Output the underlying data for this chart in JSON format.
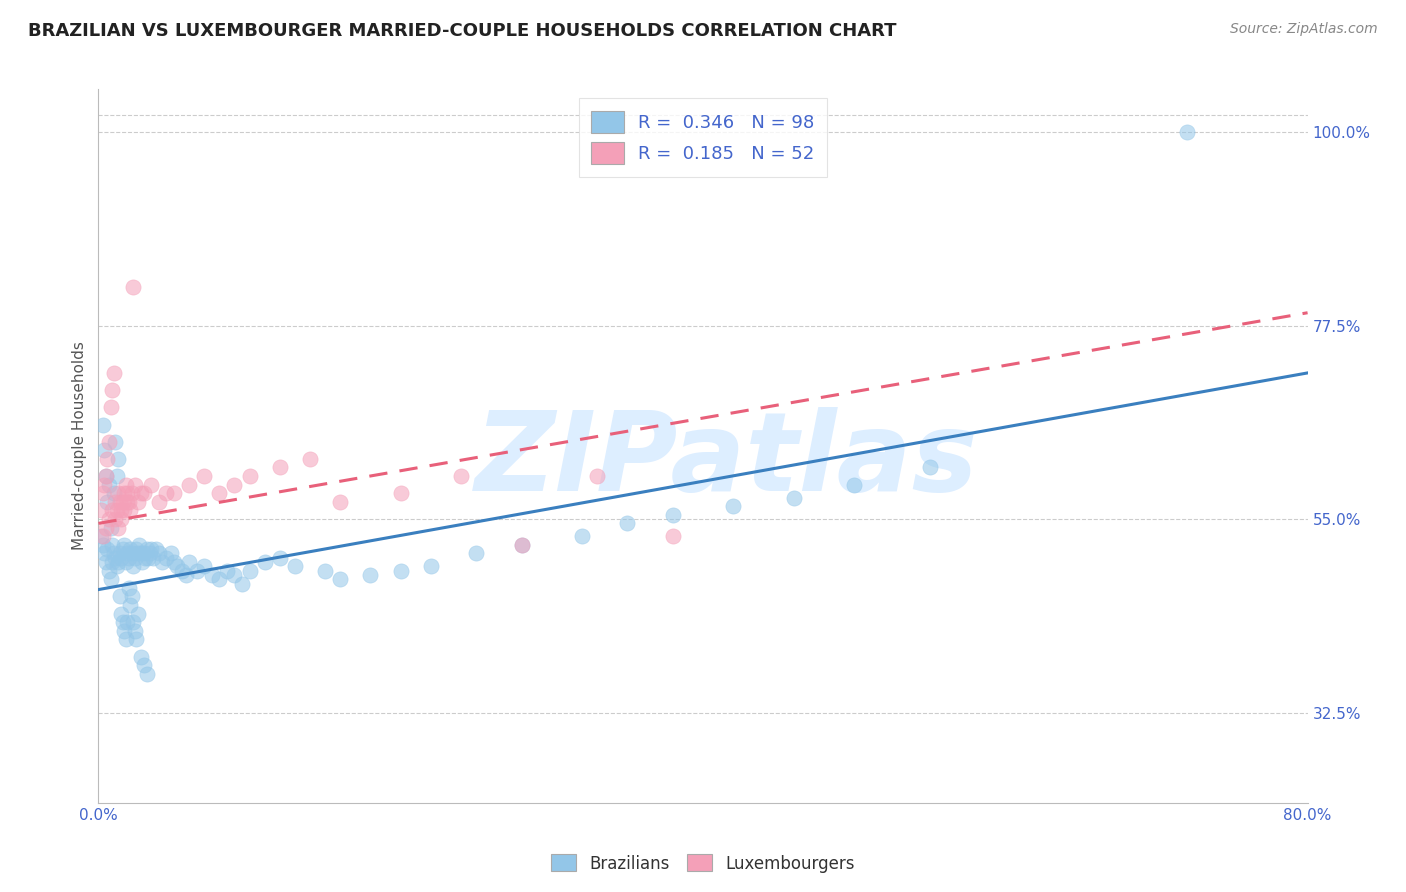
{
  "title": "BRAZILIAN VS LUXEMBOURGER MARRIED-COUPLE HOUSEHOLDS CORRELATION CHART",
  "source": "Source: ZipAtlas.com",
  "ylabel": "Married-couple Households",
  "ytick_labels": [
    "100.0%",
    "77.5%",
    "55.0%",
    "32.5%"
  ],
  "ytick_values": [
    1.0,
    0.775,
    0.55,
    0.325
  ],
  "watermark": "ZIPatlas",
  "blue_scatter_x": [
    0.002,
    0.003,
    0.004,
    0.005,
    0.006,
    0.007,
    0.008,
    0.009,
    0.01,
    0.011,
    0.012,
    0.013,
    0.014,
    0.015,
    0.016,
    0.017,
    0.018,
    0.019,
    0.02,
    0.021,
    0.022,
    0.023,
    0.024,
    0.025,
    0.026,
    0.027,
    0.028,
    0.029,
    0.03,
    0.031,
    0.032,
    0.033,
    0.034,
    0.035,
    0.036,
    0.038,
    0.04,
    0.042,
    0.045,
    0.048,
    0.05,
    0.052,
    0.055,
    0.058,
    0.06,
    0.065,
    0.07,
    0.075,
    0.08,
    0.085,
    0.09,
    0.095,
    0.1,
    0.11,
    0.12,
    0.13,
    0.15,
    0.16,
    0.18,
    0.2,
    0.22,
    0.25,
    0.28,
    0.32,
    0.35,
    0.38,
    0.42,
    0.46,
    0.5,
    0.55,
    0.003,
    0.004,
    0.005,
    0.006,
    0.007,
    0.008,
    0.009,
    0.01,
    0.011,
    0.012,
    0.013,
    0.014,
    0.015,
    0.016,
    0.017,
    0.018,
    0.019,
    0.02,
    0.021,
    0.022,
    0.023,
    0.024,
    0.025,
    0.026,
    0.028,
    0.03,
    0.032,
    0.72
  ],
  "blue_scatter_y": [
    0.53,
    0.52,
    0.51,
    0.5,
    0.515,
    0.49,
    0.48,
    0.5,
    0.51,
    0.505,
    0.495,
    0.5,
    0.51,
    0.505,
    0.515,
    0.52,
    0.5,
    0.51,
    0.505,
    0.515,
    0.51,
    0.495,
    0.505,
    0.515,
    0.51,
    0.52,
    0.51,
    0.5,
    0.51,
    0.505,
    0.515,
    0.505,
    0.51,
    0.515,
    0.505,
    0.515,
    0.51,
    0.5,
    0.505,
    0.51,
    0.5,
    0.495,
    0.49,
    0.485,
    0.5,
    0.49,
    0.495,
    0.485,
    0.48,
    0.49,
    0.485,
    0.475,
    0.49,
    0.5,
    0.505,
    0.495,
    0.49,
    0.48,
    0.485,
    0.49,
    0.495,
    0.51,
    0.52,
    0.53,
    0.545,
    0.555,
    0.565,
    0.575,
    0.59,
    0.61,
    0.66,
    0.63,
    0.6,
    0.57,
    0.59,
    0.54,
    0.52,
    0.58,
    0.64,
    0.6,
    0.62,
    0.46,
    0.44,
    0.43,
    0.42,
    0.41,
    0.43,
    0.47,
    0.45,
    0.46,
    0.43,
    0.42,
    0.41,
    0.44,
    0.39,
    0.38,
    0.37,
    1.0
  ],
  "pink_scatter_x": [
    0.002,
    0.003,
    0.004,
    0.005,
    0.006,
    0.007,
    0.008,
    0.009,
    0.01,
    0.011,
    0.012,
    0.013,
    0.014,
    0.015,
    0.016,
    0.017,
    0.018,
    0.019,
    0.02,
    0.022,
    0.024,
    0.026,
    0.028,
    0.03,
    0.035,
    0.04,
    0.045,
    0.05,
    0.06,
    0.07,
    0.08,
    0.09,
    0.1,
    0.12,
    0.14,
    0.16,
    0.2,
    0.24,
    0.28,
    0.33,
    0.003,
    0.005,
    0.007,
    0.009,
    0.011,
    0.013,
    0.015,
    0.017,
    0.019,
    0.021,
    0.023,
    0.38
  ],
  "pink_scatter_y": [
    0.56,
    0.58,
    0.59,
    0.6,
    0.62,
    0.64,
    0.68,
    0.7,
    0.72,
    0.55,
    0.56,
    0.58,
    0.57,
    0.56,
    0.57,
    0.58,
    0.59,
    0.58,
    0.57,
    0.58,
    0.59,
    0.57,
    0.58,
    0.58,
    0.59,
    0.57,
    0.58,
    0.58,
    0.59,
    0.6,
    0.58,
    0.59,
    0.6,
    0.61,
    0.62,
    0.57,
    0.58,
    0.6,
    0.52,
    0.6,
    0.53,
    0.54,
    0.55,
    0.56,
    0.57,
    0.54,
    0.55,
    0.56,
    0.57,
    0.56,
    0.82,
    0.53
  ],
  "blue_line_x": [
    0.0,
    0.8
  ],
  "blue_line_y": [
    0.468,
    0.72
  ],
  "pink_line_x": [
    0.0,
    0.8
  ],
  "pink_line_y": [
    0.545,
    0.79
  ],
  "xlim": [
    0.0,
    0.8
  ],
  "ylim": [
    0.22,
    1.05
  ],
  "blue_color": "#93c6e8",
  "pink_color": "#f4a0b8",
  "blue_line_color": "#3a7fbf",
  "pink_line_color": "#e8607a",
  "title_fontsize": 13,
  "source_fontsize": 10,
  "axis_color": "#4466cc",
  "watermark_color": "#ddeeff",
  "watermark_fontsize": 80,
  "legend_r_color": "#3366cc",
  "legend_n_color": "#cc3333"
}
